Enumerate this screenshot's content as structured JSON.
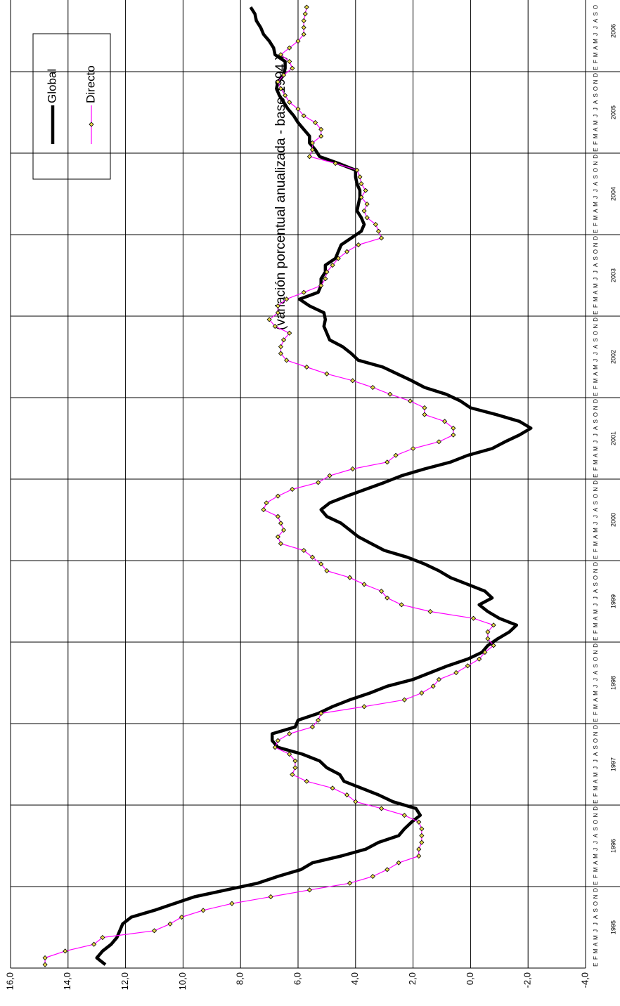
{
  "chart_data": {
    "type": "line",
    "title": "(variación porcentual anualizada - base 1994 )",
    "categories": [
      "E",
      "F",
      "M",
      "A",
      "M",
      "J",
      "J",
      "A",
      "S",
      "O",
      "N",
      "D",
      "E",
      "F",
      "M",
      "A",
      "M",
      "J",
      "J",
      "A",
      "S",
      "O",
      "N",
      "D",
      "E",
      "F",
      "M",
      "A",
      "M",
      "J",
      "J",
      "A",
      "S",
      "O",
      "N",
      "D",
      "E",
      "F",
      "M",
      "A",
      "M",
      "J",
      "J",
      "A",
      "S",
      "O",
      "N",
      "D",
      "E",
      "F",
      "M",
      "A",
      "M",
      "J",
      "J",
      "A",
      "S",
      "O",
      "N",
      "D",
      "E",
      "F",
      "M",
      "A",
      "M",
      "J",
      "J",
      "A",
      "S",
      "O",
      "N",
      "D",
      "E",
      "F",
      "M",
      "A",
      "M",
      "J",
      "J",
      "A",
      "S",
      "O",
      "N",
      "D",
      "E",
      "F",
      "M",
      "A",
      "M",
      "J",
      "J",
      "A",
      "S",
      "O",
      "N",
      "D",
      "E",
      "F",
      "M",
      "A",
      "M",
      "J",
      "J",
      "A",
      "S",
      "O",
      "N",
      "D",
      "E",
      "F",
      "M",
      "A",
      "M",
      "J",
      "J",
      "A",
      "S",
      "O",
      "N",
      "D",
      "E",
      "F",
      "M",
      "A",
      "M",
      "J",
      "J",
      "A",
      "S",
      "O",
      "N",
      "D",
      "E",
      "F",
      "M",
      "A",
      "M",
      "J",
      "J",
      "A",
      "S",
      "O"
    ],
    "category_groups": [
      "1995",
      "1996",
      "1997",
      "1998",
      "1999",
      "2000",
      "2001",
      "2002",
      "2003",
      "2004",
      "2005",
      "2006"
    ],
    "series": [
      {
        "name": "Global",
        "color": "#000000",
        "values": [
          12.7,
          13.0,
          12.8,
          12.5,
          12.3,
          12.2,
          12.1,
          11.8,
          11.0,
          10.3,
          9.6,
          8.5,
          7.4,
          6.7,
          5.9,
          5.5,
          4.5,
          3.65,
          3.2,
          2.5,
          2.3,
          2.05,
          1.75,
          1.9,
          2.7,
          3.2,
          3.8,
          4.4,
          4.55,
          5.0,
          5.25,
          5.85,
          6.7,
          6.9,
          6.9,
          6.1,
          6.0,
          5.3,
          4.8,
          4.2,
          3.5,
          2.9,
          2.0,
          1.4,
          0.8,
          0.1,
          -0.4,
          -0.6,
          -0.95,
          -1.35,
          -1.6,
          -1.0,
          -0.6,
          -0.3,
          -0.75,
          -0.5,
          0.1,
          0.7,
          1.1,
          1.6,
          2.2,
          3.0,
          3.45,
          3.9,
          4.2,
          4.5,
          5.0,
          5.2,
          4.9,
          4.3,
          3.65,
          3.0,
          2.4,
          1.6,
          0.7,
          0.1,
          -0.75,
          -1.2,
          -1.7,
          -2.1,
          -1.7,
          -0.9,
          0.0,
          0.35,
          0.85,
          1.6,
          2.05,
          2.55,
          3.05,
          3.9,
          4.15,
          4.45,
          4.9,
          5.0,
          5.1,
          5.05,
          5.1,
          5.6,
          5.95,
          5.3,
          5.2,
          5.2,
          5.05,
          5.05,
          4.7,
          4.6,
          4.5,
          4.15,
          3.8,
          3.7,
          3.8,
          3.95,
          3.9,
          3.85,
          3.85,
          3.95,
          4.0,
          4.0,
          4.6,
          5.25,
          5.4,
          5.6,
          5.6,
          5.8,
          6.0,
          6.15,
          6.35,
          6.5,
          6.65,
          6.75,
          6.7,
          6.5,
          6.45,
          6.45,
          6.8,
          6.85,
          7.0,
          7.2,
          7.3,
          7.45,
          7.5,
          7.65
        ]
      },
      {
        "name": "Directo",
        "color": "#ff00ff",
        "marker_color": "#e8d84a",
        "values": [
          14.8,
          14.8,
          14.1,
          13.1,
          12.8,
          11.0,
          10.45,
          10.05,
          9.3,
          8.3,
          6.95,
          5.6,
          4.2,
          3.4,
          2.9,
          2.5,
          1.8,
          1.8,
          1.7,
          1.7,
          1.7,
          1.8,
          2.3,
          3.1,
          4.0,
          4.3,
          4.8,
          5.7,
          6.2,
          6.1,
          6.1,
          6.3,
          6.8,
          6.7,
          6.3,
          5.5,
          5.3,
          5.2,
          3.7,
          2.3,
          1.7,
          1.3,
          1.1,
          0.5,
          0.1,
          -0.3,
          -0.5,
          -0.8,
          -0.6,
          -0.6,
          -0.8,
          -0.1,
          1.4,
          2.4,
          2.9,
          3.1,
          3.7,
          4.2,
          5.0,
          5.2,
          5.5,
          5.8,
          6.6,
          6.7,
          6.5,
          6.6,
          6.7,
          7.2,
          7.1,
          6.7,
          6.2,
          5.3,
          4.9,
          4.1,
          2.9,
          2.6,
          2.0,
          1.1,
          0.6,
          0.6,
          0.9,
          1.6,
          1.6,
          2.1,
          2.8,
          3.4,
          4.1,
          5.0,
          5.7,
          6.4,
          6.6,
          6.6,
          6.5,
          6.3,
          6.8,
          7.0,
          6.7,
          6.7,
          6.4,
          5.8,
          5.2,
          5.05,
          5.0,
          4.8,
          4.6,
          4.3,
          3.9,
          3.1,
          3.2,
          3.3,
          3.6,
          3.7,
          3.6,
          3.8,
          3.65,
          3.8,
          3.85,
          3.95,
          4.7,
          5.6,
          5.5,
          5.5,
          5.2,
          5.2,
          5.4,
          5.8,
          6.0,
          6.3,
          6.45,
          6.6,
          6.7,
          6.5,
          6.2,
          6.3,
          6.6,
          6.3,
          6.0,
          5.8,
          5.8,
          5.8,
          5.75,
          5.7
        ]
      }
    ],
    "ylim": [
      -4,
      16
    ],
    "yticks": [
      {
        "value": 16,
        "label": "16,0"
      },
      {
        "value": 14,
        "label": "14,0"
      },
      {
        "value": 12,
        "label": "12,0"
      },
      {
        "value": 10,
        "label": "10,0"
      },
      {
        "value": 8,
        "label": "8,0"
      },
      {
        "value": 6,
        "label": "6,0"
      },
      {
        "value": 4,
        "label": "4,0"
      },
      {
        "value": 2,
        "label": "2,0"
      },
      {
        "value": 0,
        "label": "0,0"
      },
      {
        "value": -2,
        "label": "-2,0"
      },
      {
        "value": -4,
        "label": "-4,0"
      }
    ],
    "grid": true
  }
}
